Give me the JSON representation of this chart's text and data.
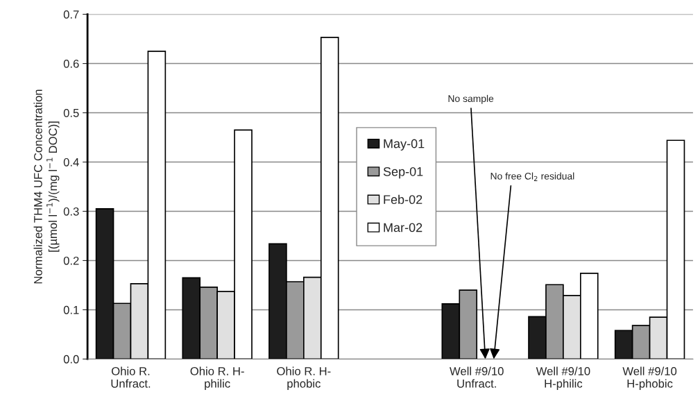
{
  "chart_data": {
    "type": "bar",
    "ylabel": "Normalized THM4 UFC Concentration\n[(µmol l$^{−1}$)/(mg l$^{−1}$ DOC)]",
    "categories": [
      "Ohio R.\nUnfract.",
      "Ohio R. H-\nphilic",
      "Ohio R. H-\nphobic",
      null,
      "Well #9/10\nUnfract.",
      "Well #9/10\nH-philic",
      "Well #9/10\nH-phobic"
    ],
    "series": [
      {
        "name": "May-01",
        "color": "#1e1e1e",
        "values": [
          0.305,
          0.165,
          0.234,
          null,
          0.112,
          0.086,
          0.058
        ]
      },
      {
        "name": "Sep-01",
        "color": "#9a9a9a",
        "values": [
          0.113,
          0.146,
          0.157,
          null,
          0.14,
          0.151,
          0.068
        ]
      },
      {
        "name": "Feb-02",
        "color": "#e0e0e0",
        "values": [
          0.153,
          0.137,
          0.166,
          null,
          null,
          0.129,
          0.085
        ]
      },
      {
        "name": "Mar-02",
        "color": "#ffffff",
        "values": [
          0.625,
          0.465,
          0.653,
          null,
          null,
          0.174,
          0.444
        ]
      }
    ],
    "ylim": [
      0,
      0.7
    ],
    "yticks": [
      {
        "value": 0,
        "label": "0.0"
      },
      {
        "value": 0.1,
        "label": "0.1"
      },
      {
        "value": 0.2,
        "label": "0.2"
      },
      {
        "value": 0.3,
        "label": "0.3"
      },
      {
        "value": 0.4,
        "label": "0.4"
      },
      {
        "value": 0.5,
        "label": "0.5"
      },
      {
        "value": 0.6,
        "label": "0.6"
      },
      {
        "value": 0.7,
        "label": "0.7"
      }
    ],
    "grid": "y",
    "legend": "center",
    "annotations": [
      "No sample",
      "No free Cl$_{2}$ residual"
    ]
  }
}
